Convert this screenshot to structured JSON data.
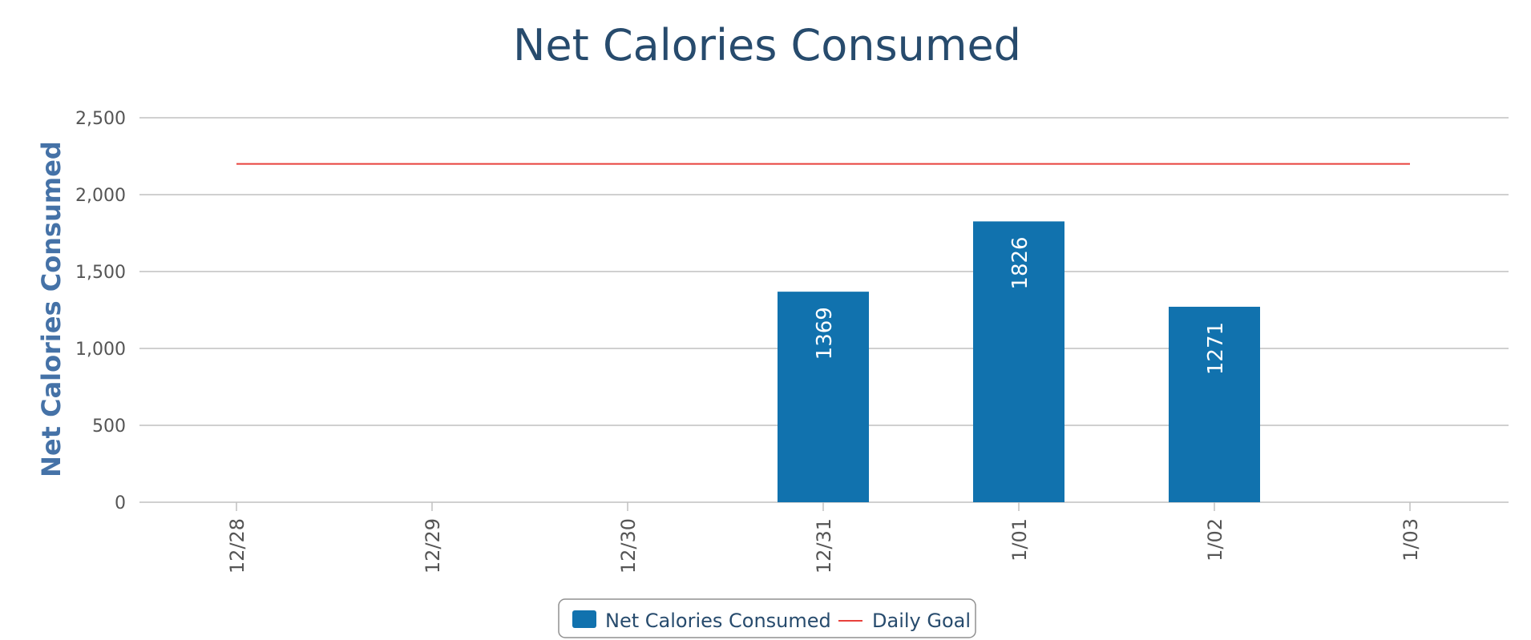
{
  "chart_data": {
    "type": "bar",
    "title": "Net Calories Consumed",
    "ylabel": "Net Calories Consumed",
    "xlabel": "",
    "categories": [
      "12/28",
      "12/29",
      "12/30",
      "12/31",
      "1/01",
      "1/02",
      "1/03"
    ],
    "series": [
      {
        "name": "Net Calories Consumed",
        "type": "bar",
        "color": "#1172ae",
        "values": [
          null,
          null,
          null,
          1369,
          1826,
          1271,
          null
        ],
        "data_labels": [
          "",
          "",
          "",
          "1369",
          "1826",
          "1271",
          ""
        ]
      },
      {
        "name": "Daily Goal",
        "type": "line",
        "color": "#e8413c",
        "values": [
          2200,
          2200,
          2200,
          2200,
          2200,
          2200,
          2200
        ]
      }
    ],
    "ylim": [
      0,
      2500
    ],
    "yticks": [
      0,
      500,
      1000,
      1500,
      2000,
      2500
    ],
    "ytick_labels": [
      "0",
      "500",
      "1,000",
      "1,500",
      "2,000",
      "2,500"
    ],
    "grid": true,
    "legend_position": "bottom-center",
    "colors": {
      "gridline": "#c0c0c0",
      "title": "#274b6d",
      "axis_title": "#4572a7"
    }
  }
}
